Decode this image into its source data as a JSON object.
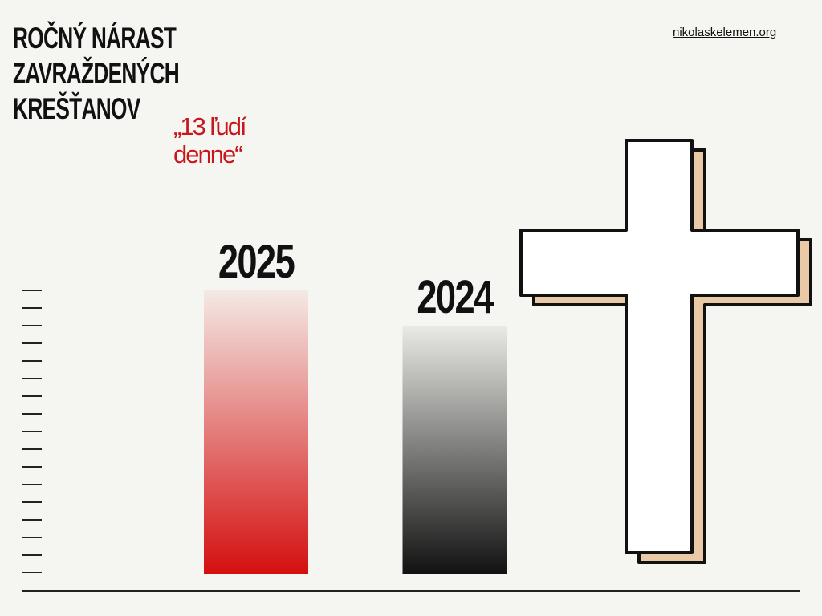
{
  "chart_data": {
    "type": "bar",
    "title": "ROČNÝ NÁRAST ZAVRAŽDENÝCH KREŠŤANOV",
    "annotation": "„13 ľudí denne“",
    "source": "nikolaskelemen.org",
    "categories": [
      "2025",
      "2024"
    ],
    "values": [
      16,
      14
    ],
    "colors": [
      "#d40f0f",
      "#111111"
    ],
    "ylim": [
      0,
      16
    ],
    "yticks": [
      0,
      1,
      2,
      3,
      4,
      5,
      6,
      7,
      8,
      9,
      10,
      11,
      12,
      13,
      14,
      15,
      16
    ]
  }
}
